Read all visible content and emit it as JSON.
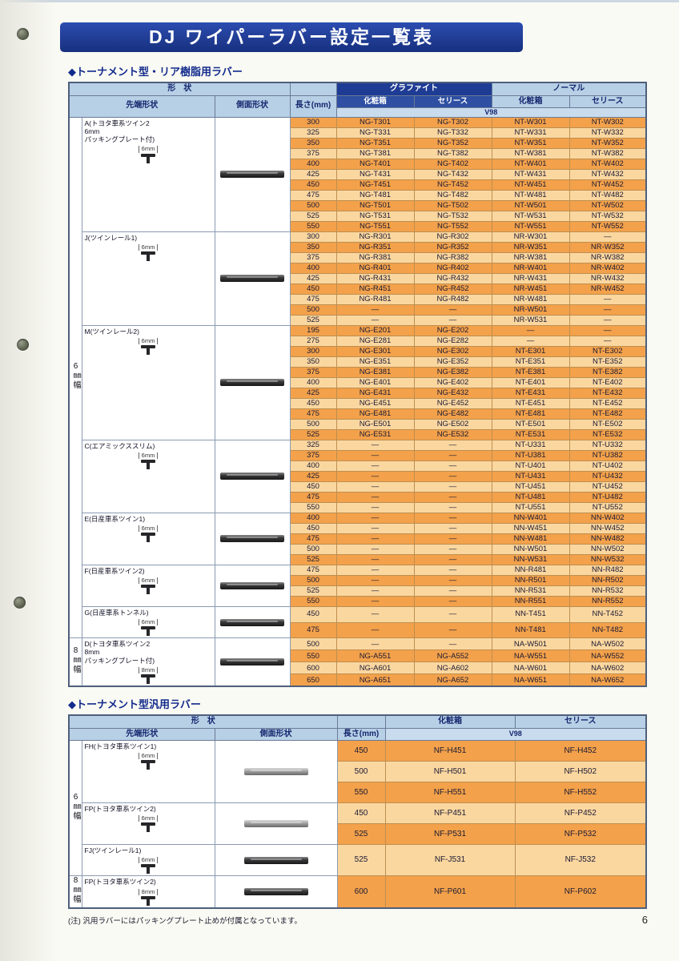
{
  "page": {
    "title": "DJ ワイパーラバー設定一覧表",
    "page_number": "6",
    "footnote": "(注) 汎用ラバーにはパッキングプレート止めが付属となっています。"
  },
  "headers": {
    "shape": "形　状",
    "tip": "先端形状",
    "side": "側面形状",
    "length": "長さ(mm)",
    "graphite": "グラファイト",
    "normal": "ノーマル",
    "box": "化粧箱",
    "series": "セリース",
    "v98": "V98"
  },
  "colors": {
    "banner_navy": "#1d3a96",
    "header_light_blue": "#b7d0e6",
    "header_navy": "#1e3c94",
    "row_orange_dark": "#f3a14a",
    "row_orange_light": "#fbd7a0"
  },
  "table1": {
    "section_title": "◆トーナメント型・リア樹脂用ラバー",
    "groups": [
      {
        "id": "A",
        "label_lines": [
          "A(トヨタ車系ツイン2",
          "6mm",
          "パッキングプレート付)"
        ],
        "tip_mm": "6mm",
        "band": "6㎜幅",
        "blade_shade": "dark",
        "rows": [
          [
            "300",
            "NG-T301",
            "NG-T302",
            "NT-W301",
            "NT-W302"
          ],
          [
            "325",
            "NG-T331",
            "NG-T332",
            "NT-W331",
            "NT-W332"
          ],
          [
            "350",
            "NG-T351",
            "NG-T352",
            "NT-W351",
            "NT-W352"
          ],
          [
            "375",
            "NG-T381",
            "NG-T382",
            "NT-W381",
            "NT-W382"
          ],
          [
            "400",
            "NG-T401",
            "NG-T402",
            "NT-W401",
            "NT-W402"
          ],
          [
            "425",
            "NG-T431",
            "NG-T432",
            "NT-W431",
            "NT-W432"
          ],
          [
            "450",
            "NG-T451",
            "NG-T452",
            "NT-W451",
            "NT-W452"
          ],
          [
            "475",
            "NG-T481",
            "NG-T482",
            "NT-W481",
            "NT-W482"
          ],
          [
            "500",
            "NG-T501",
            "NG-T502",
            "NT-W501",
            "NT-W502"
          ],
          [
            "525",
            "NG-T531",
            "NG-T532",
            "NT-W531",
            "NT-W532"
          ],
          [
            "550",
            "NG-T551",
            "NG-T552",
            "NT-W551",
            "NT-W552"
          ]
        ]
      },
      {
        "id": "J",
        "label_lines": [
          "J(ツインレール1)"
        ],
        "tip_mm": "6mm",
        "band": "6㎜幅",
        "blade_shade": "dark",
        "rows": [
          [
            "300",
            "NG-R301",
            "NG-R302",
            "NR-W301",
            "—"
          ],
          [
            "350",
            "NG-R351",
            "NG-R352",
            "NR-W351",
            "NR-W352"
          ],
          [
            "375",
            "NG-R381",
            "NG-R382",
            "NR-W381",
            "NR-W382"
          ],
          [
            "400",
            "NG-R401",
            "NG-R402",
            "NR-W401",
            "NR-W402"
          ],
          [
            "425",
            "NG-R431",
            "NG-R432",
            "NR-W431",
            "NR-W432"
          ],
          [
            "450",
            "NG-R451",
            "NG-R452",
            "NR-W451",
            "NR-W452"
          ],
          [
            "475",
            "NG-R481",
            "NG-R482",
            "NR-W481",
            "—"
          ],
          [
            "500",
            "—",
            "—",
            "NR-W501",
            "—"
          ],
          [
            "525",
            "—",
            "—",
            "NR-W531",
            "—"
          ]
        ]
      },
      {
        "id": "M",
        "label_lines": [
          "M(ツインレール2)"
        ],
        "tip_mm": "6mm",
        "band": "6㎜幅",
        "blade_shade": "dark",
        "rows": [
          [
            "195",
            "NG-E201",
            "NG-E202",
            "—",
            "—"
          ],
          [
            "275",
            "NG-E281",
            "NG-E282",
            "—",
            "—"
          ],
          [
            "300",
            "NG-E301",
            "NG-E302",
            "NT-E301",
            "NT-E302"
          ],
          [
            "350",
            "NG-E351",
            "NG-E352",
            "NT-E351",
            "NT-E352"
          ],
          [
            "375",
            "NG-E381",
            "NG-E382",
            "NT-E381",
            "NT-E382"
          ],
          [
            "400",
            "NG-E401",
            "NG-E402",
            "NT-E401",
            "NT-E402"
          ],
          [
            "425",
            "NG-E431",
            "NG-E432",
            "NT-E431",
            "NT-E432"
          ],
          [
            "450",
            "NG-E451",
            "NG-E452",
            "NT-E451",
            "NT-E452"
          ],
          [
            "475",
            "NG-E481",
            "NG-E482",
            "NT-E481",
            "NT-E482"
          ],
          [
            "500",
            "NG-E501",
            "NG-E502",
            "NT-E501",
            "NT-E502"
          ],
          [
            "525",
            "NG-E531",
            "NG-E532",
            "NT-E531",
            "NT-E532"
          ]
        ]
      },
      {
        "id": "C",
        "label_lines": [
          "C(エアミックススリム)"
        ],
        "tip_mm": "6mm",
        "band": "6㎜幅",
        "blade_shade": "dark",
        "rows": [
          [
            "325",
            "—",
            "—",
            "NT-U331",
            "NT-U332"
          ],
          [
            "375",
            "—",
            "—",
            "NT-U381",
            "NT-U382"
          ],
          [
            "400",
            "—",
            "—",
            "NT-U401",
            "NT-U402"
          ],
          [
            "425",
            "—",
            "—",
            "NT-U431",
            "NT-U432"
          ],
          [
            "450",
            "—",
            "—",
            "NT-U451",
            "NT-U452"
          ],
          [
            "475",
            "—",
            "—",
            "NT-U481",
            "NT-U482"
          ],
          [
            "550",
            "—",
            "—",
            "NT-U551",
            "NT-U552"
          ]
        ]
      },
      {
        "id": "E",
        "label_lines": [
          "E(日産車系ツイン1)"
        ],
        "tip_mm": "6mm",
        "band": "6㎜幅",
        "blade_shade": "dark",
        "rows": [
          [
            "400",
            "—",
            "—",
            "NN-W401",
            "NN-W402"
          ],
          [
            "450",
            "—",
            "—",
            "NN-W451",
            "NN-W452"
          ],
          [
            "475",
            "—",
            "—",
            "NN-W481",
            "NN-W482"
          ],
          [
            "500",
            "—",
            "—",
            "NN-W501",
            "NN-W502"
          ],
          [
            "525",
            "—",
            "—",
            "NN-W531",
            "NN-W532"
          ]
        ]
      },
      {
        "id": "F",
        "label_lines": [
          "F(日産車系ツイン2)"
        ],
        "tip_mm": "6mm",
        "band": "6㎜幅",
        "blade_shade": "dark",
        "rows": [
          [
            "475",
            "—",
            "—",
            "NN-R481",
            "NN-R482"
          ],
          [
            "500",
            "—",
            "—",
            "NN-R501",
            "NN-R502"
          ],
          [
            "525",
            "—",
            "—",
            "NN-R531",
            "NN-R532"
          ],
          [
            "550",
            "—",
            "—",
            "NN-R551",
            "NN-R552"
          ]
        ]
      },
      {
        "id": "G",
        "label_lines": [
          "G(日産車系トンネル)"
        ],
        "tip_mm": "6mm",
        "band": "6㎜幅",
        "blade_shade": "dark",
        "rows": [
          [
            "450",
            "—",
            "—",
            "NN-T451",
            "NN-T452"
          ],
          [
            "475",
            "—",
            "—",
            "NN-T481",
            "NN-T482"
          ]
        ]
      },
      {
        "id": "D",
        "label_lines": [
          "D(トヨタ車系ツイン2",
          "8mm",
          "パッキングプレート付)"
        ],
        "tip_mm": "8mm",
        "band": "8㎜幅",
        "blade_shade": "dark",
        "rows": [
          [
            "500",
            "—",
            "—",
            "NA-W501",
            "NA-W502"
          ],
          [
            "550",
            "NG-A551",
            "NG-A552",
            "NA-W551",
            "NA-W552"
          ],
          [
            "600",
            "NG-A601",
            "NG-A602",
            "NA-W601",
            "NA-W602"
          ],
          [
            "650",
            "NG-A651",
            "NG-A652",
            "NA-W651",
            "NA-W652"
          ]
        ]
      }
    ]
  },
  "table2": {
    "section_title": "◆トーナメント型汎用ラバー",
    "groups": [
      {
        "id": "FH",
        "label_lines": [
          "FH(トヨタ車系ツイン1)"
        ],
        "tip_mm": "6mm",
        "band": "6㎜幅",
        "blade_shade": "light",
        "rows": [
          [
            "450",
            "NF-H451",
            "NF-H452"
          ],
          [
            "500",
            "NF-H501",
            "NF-H502"
          ],
          [
            "550",
            "NF-H551",
            "NF-H552"
          ]
        ]
      },
      {
        "id": "FP",
        "label_lines": [
          "FP(トヨタ車系ツイン2)"
        ],
        "tip_mm": "6mm",
        "band": "6㎜幅",
        "blade_shade": "light",
        "rows": [
          [
            "450",
            "NF-P451",
            "NF-P452"
          ],
          [
            "525",
            "NF-P531",
            "NF-P532"
          ]
        ]
      },
      {
        "id": "FJ",
        "label_lines": [
          "FJ(ツインレール1)"
        ],
        "tip_mm": "6mm",
        "band": "6㎜幅",
        "blade_shade": "dark",
        "rows": [
          [
            "525",
            "NF-J531",
            "NF-J532"
          ]
        ]
      },
      {
        "id": "FP8",
        "label_lines": [
          "FP(トヨタ車系ツイン2)"
        ],
        "tip_mm": "8mm",
        "band": "8㎜幅",
        "blade_shade": "dark",
        "rows": [
          [
            "600",
            "NF-P601",
            "NF-P602"
          ]
        ]
      }
    ]
  }
}
